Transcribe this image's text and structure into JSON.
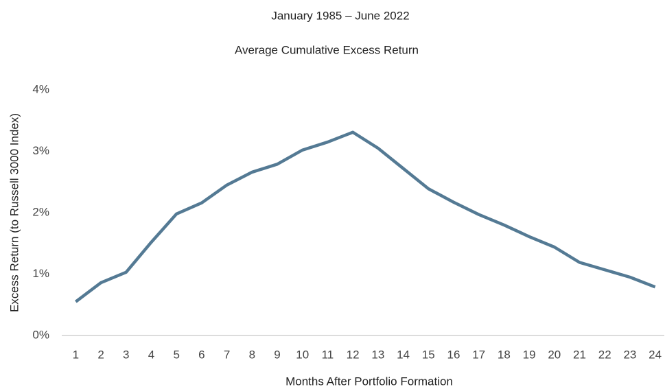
{
  "chart_data": {
    "type": "line",
    "title": "January 1985 – June 2022",
    "subtitle": "Average Cumulative Excess Return",
    "x_label": "Months After Portfolio Formation",
    "y_label": "Excess Return (to Russell 3000 Index)",
    "categories": [
      "1",
      "2",
      "3",
      "4",
      "5",
      "6",
      "7",
      "8",
      "9",
      "10",
      "11",
      "12",
      "13",
      "14",
      "15",
      "16",
      "17",
      "18",
      "19",
      "20",
      "21",
      "22",
      "23",
      "24"
    ],
    "series": [
      {
        "name": "Average Cumulative Excess Return",
        "color": "#547a94",
        "values": [
          0.55,
          0.86,
          1.03,
          1.52,
          1.98,
          2.16,
          2.45,
          2.66,
          2.79,
          3.02,
          3.15,
          3.31,
          3.05,
          2.72,
          2.39,
          2.17,
          1.97,
          1.8,
          1.61,
          1.44,
          1.19,
          1.07,
          0.95,
          0.79
        ]
      }
    ],
    "ylim": [
      0,
      4
    ],
    "yticks": [
      {
        "value": 0,
        "label": "0%"
      },
      {
        "value": 1,
        "label": "1%"
      },
      {
        "value": 2,
        "label": "2%"
      },
      {
        "value": 3,
        "label": "3%"
      },
      {
        "value": 4,
        "label": "4%"
      }
    ],
    "grid": false
  }
}
